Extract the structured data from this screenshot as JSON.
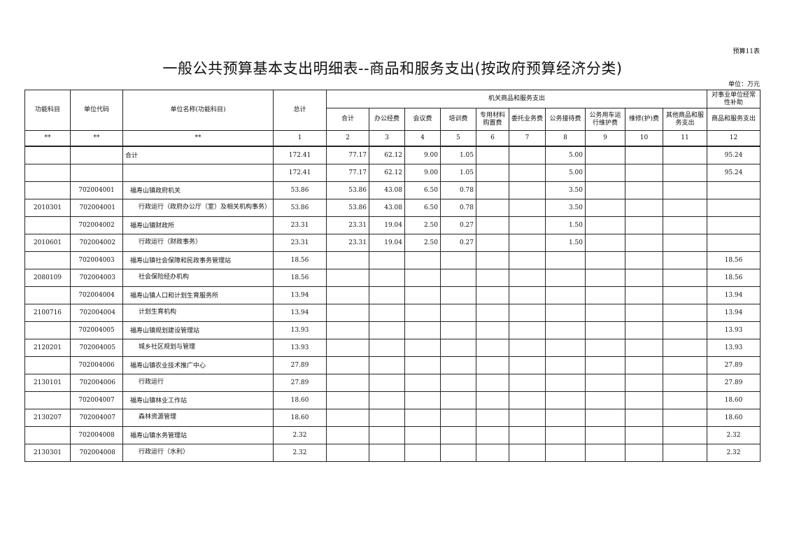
{
  "tag": "预算11表",
  "title": "一般公共预算基本支出明细表--商品和服务支出(按政府预算经济分类)",
  "unit": "单位：万元",
  "headers": {
    "func": "功能科目",
    "code": "单位代码",
    "name": "单位名称(功能科目)",
    "total": "总计",
    "group1": "机关商品和服务支出",
    "group2": "对事业单位经常性补助",
    "sub": [
      "合计",
      "办公经费",
      "会议费",
      "培训费",
      "专用材料购置费",
      "委托业务费",
      "公务接待费",
      "公务用车运行维护费",
      "维修(护)费",
      "其他商品和服务支出",
      "商品和服务支出"
    ],
    "index": [
      "**",
      "**",
      "**",
      "1",
      "2",
      "3",
      "4",
      "5",
      "6",
      "7",
      "8",
      "9",
      "10",
      "11",
      "12"
    ]
  },
  "rows": [
    [
      "",
      "",
      "合计",
      "172.41",
      "77.17",
      "62.12",
      "9.00",
      "1.05",
      "",
      "",
      "5.00",
      "",
      "",
      "",
      "95.24"
    ],
    [
      "",
      "",
      "",
      "172.41",
      "77.17",
      "62.12",
      "9.00",
      "1.05",
      "",
      "",
      "5.00",
      "",
      "",
      "",
      "95.24"
    ],
    [
      "",
      "702004001",
      "福寿山镇政府机关",
      "53.86",
      "53.86",
      "43.08",
      "6.50",
      "0.78",
      "",
      "",
      "3.50",
      "",
      "",
      "",
      ""
    ],
    [
      "2010301",
      "702004001",
      "行政运行（政府办公厅（室）及相关机构事务）",
      "53.86",
      "53.86",
      "43.08",
      "6.50",
      "0.78",
      "",
      "",
      "3.50",
      "",
      "",
      "",
      ""
    ],
    [
      "",
      "702004002",
      "福寿山镇财政所",
      "23.31",
      "23.31",
      "19.04",
      "2.50",
      "0.27",
      "",
      "",
      "1.50",
      "",
      "",
      "",
      ""
    ],
    [
      "2010601",
      "702004002",
      "行政运行（财政事务）",
      "23.31",
      "23.31",
      "19.04",
      "2.50",
      "0.27",
      "",
      "",
      "1.50",
      "",
      "",
      "",
      ""
    ],
    [
      "",
      "702004003",
      "福寿山镇社会保障和民政事务管理站",
      "18.56",
      "",
      "",
      "",
      "",
      "",
      "",
      "",
      "",
      "",
      "",
      "18.56"
    ],
    [
      "2080109",
      "702004003",
      "社会保险经办机构",
      "18.56",
      "",
      "",
      "",
      "",
      "",
      "",
      "",
      "",
      "",
      "",
      "18.56"
    ],
    [
      "",
      "702004004",
      "福寿山镇人口和计划生育服务所",
      "13.94",
      "",
      "",
      "",
      "",
      "",
      "",
      "",
      "",
      "",
      "",
      "13.94"
    ],
    [
      "2100716",
      "702004004",
      "计划生育机构",
      "13.94",
      "",
      "",
      "",
      "",
      "",
      "",
      "",
      "",
      "",
      "",
      "13.94"
    ],
    [
      "",
      "702004005",
      "福寿山镇规划建设管理站",
      "13.93",
      "",
      "",
      "",
      "",
      "",
      "",
      "",
      "",
      "",
      "",
      "13.93"
    ],
    [
      "2120201",
      "702004005",
      "城乡社区规划与管理",
      "13.93",
      "",
      "",
      "",
      "",
      "",
      "",
      "",
      "",
      "",
      "",
      "13.93"
    ],
    [
      "",
      "702004006",
      "福寿山镇农业技术推广中心",
      "27.89",
      "",
      "",
      "",
      "",
      "",
      "",
      "",
      "",
      "",
      "",
      "27.89"
    ],
    [
      "2130101",
      "702004006",
      "行政运行",
      "27.89",
      "",
      "",
      "",
      "",
      "",
      "",
      "",
      "",
      "",
      "",
      "27.89"
    ],
    [
      "",
      "702004007",
      "福寿山镇林业工作站",
      "18.60",
      "",
      "",
      "",
      "",
      "",
      "",
      "",
      "",
      "",
      "",
      "18.60"
    ],
    [
      "2130207",
      "702004007",
      "森林资源管理",
      "18.60",
      "",
      "",
      "",
      "",
      "",
      "",
      "",
      "",
      "",
      "",
      "18.60"
    ],
    [
      "",
      "702004008",
      "福寿山镇水务管理站",
      "2.32",
      "",
      "",
      "",
      "",
      "",
      "",
      "",
      "",
      "",
      "",
      "2.32"
    ],
    [
      "2130301",
      "702004008",
      "行政运行（水利）",
      "2.32",
      "",
      "",
      "",
      "",
      "",
      "",
      "",
      "",
      "",
      "",
      "2.32"
    ]
  ]
}
